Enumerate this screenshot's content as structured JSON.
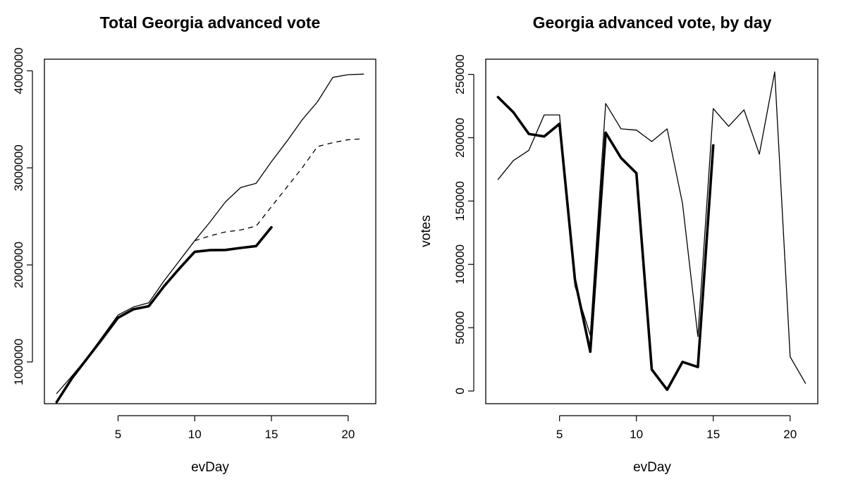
{
  "chart_data": [
    {
      "type": "line",
      "title": "Total Georgia advanced vote",
      "xlabel": "evDay",
      "ylabel": "",
      "xlim": [
        0.2,
        21.8
      ],
      "ylim": [
        570000,
        4120000
      ],
      "xticks": [
        5,
        10,
        15,
        20
      ],
      "yticks": [
        1000000,
        2000000,
        3000000,
        4000000
      ],
      "xtick_labels": [
        "5",
        "10",
        "15",
        "20"
      ],
      "ytick_labels": [
        "1000000",
        "2000000",
        "3000000",
        "4000000"
      ],
      "series": [
        {
          "name": "thin-solid",
          "style": "solid",
          "width": "thin",
          "x": [
            1,
            2,
            3,
            4,
            5,
            6,
            7,
            8,
            9,
            10,
            11,
            12,
            13,
            14,
            15,
            16,
            17,
            18,
            19,
            20,
            21
          ],
          "values": [
            675000,
            857000,
            1047000,
            1265000,
            1483000,
            1566000,
            1610000,
            1836000,
            2043000,
            2249000,
            2443000,
            2650000,
            2798000,
            2841000,
            3064000,
            3273000,
            3495000,
            3681000,
            3933000,
            3960000,
            3966000
          ]
        },
        {
          "name": "dashed",
          "style": "dashed",
          "width": "thin",
          "x": [
            10,
            11,
            12,
            13,
            14,
            15,
            16,
            17,
            18,
            19,
            20,
            21
          ],
          "values": [
            2249000,
            2300000,
            2340000,
            2360000,
            2400000,
            2600000,
            2800000,
            3000000,
            3220000,
            3260000,
            3290000,
            3300000
          ]
        },
        {
          "name": "thick-solid",
          "style": "solid",
          "width": "thick",
          "x": [
            1,
            2,
            3,
            4,
            5,
            6,
            7,
            8,
            9,
            10,
            11,
            12,
            13,
            14,
            15
          ],
          "values": [
            587000,
            834000,
            1039000,
            1245000,
            1455000,
            1543000,
            1575000,
            1780000,
            1963000,
            2135000,
            2152000,
            2154000,
            2175000,
            2194000,
            2388000
          ]
        }
      ]
    },
    {
      "type": "line",
      "title": "Georgia advanced vote, by day",
      "xlabel": "evDay",
      "ylabel": "votes",
      "xlim": [
        0.2,
        21.8
      ],
      "ylim": [
        -10000,
        262000
      ],
      "xticks": [
        5,
        10,
        15,
        20
      ],
      "yticks": [
        0,
        50000,
        100000,
        150000,
        200000,
        250000
      ],
      "xtick_labels": [
        "5",
        "10",
        "15",
        "20"
      ],
      "ytick_labels": [
        "0",
        "50000",
        "100000",
        "150000",
        "200000",
        "250000"
      ],
      "series": [
        {
          "name": "thin-solid",
          "style": "solid",
          "width": "thin",
          "x": [
            1,
            2,
            3,
            4,
            5,
            6,
            7,
            8,
            9,
            10,
            11,
            12,
            13,
            14,
            15,
            16,
            17,
            18,
            19,
            20,
            21
          ],
          "values": [
            167000,
            182000,
            190000,
            218000,
            218000,
            83000,
            44000,
            227000,
            207000,
            206000,
            197000,
            207000,
            148000,
            43000,
            223000,
            209000,
            222000,
            187000,
            252000,
            27000,
            6000
          ]
        },
        {
          "name": "thick-solid",
          "style": "solid",
          "width": "thick",
          "x": [
            1,
            2,
            3,
            4,
            5,
            6,
            7,
            8,
            9,
            10,
            11,
            12,
            13,
            14,
            15
          ],
          "values": [
            232000,
            220000,
            203000,
            201000,
            211000,
            88000,
            31000,
            204000,
            184000,
            172000,
            17000,
            1000,
            23000,
            19000,
            194000
          ]
        }
      ]
    }
  ]
}
